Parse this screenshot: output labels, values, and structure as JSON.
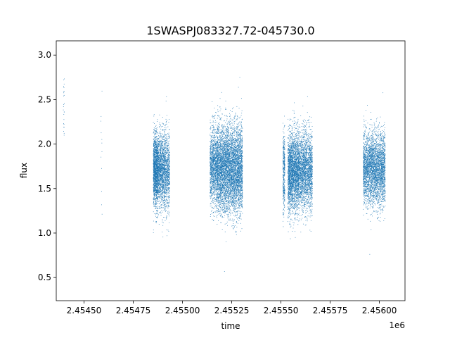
{
  "chart_data": {
    "type": "scatter",
    "title": "1SWASPJ083327.72-045730.0",
    "xlabel": "time",
    "ylabel": "flux",
    "x_offset_label": "1e6",
    "xlim": [
      2454359,
      2456130
    ],
    "ylim": [
      0.24,
      3.16
    ],
    "x_ticks": [
      2454500,
      2454750,
      2455000,
      2455250,
      2455500,
      2455750,
      2456000
    ],
    "x_tick_labels": [
      "2.45450",
      "2.45475",
      "2.45500",
      "2.45525",
      "2.45550",
      "2.45575",
      "2.45600"
    ],
    "y_ticks": [
      0.5,
      1.0,
      1.5,
      2.0,
      2.5,
      3.0
    ],
    "y_tick_labels": [
      "0.5",
      "1.0",
      "1.5",
      "2.0",
      "2.5",
      "3.0"
    ],
    "grid": false,
    "marker_color": "#1f77b4",
    "series": [
      {
        "clusters": [
          {
            "x_range": [
              2454395,
              2454400
            ],
            "y_center": 2.45,
            "y_spread": 0.22,
            "count": 25
          },
          {
            "x_range": [
              2454585,
              2454592
            ],
            "y_center": 2.1,
            "y_spread": 0.5,
            "count": 12
          },
          {
            "x_range": [
              2454852,
              2454875
            ],
            "y_center": 1.7,
            "y_spread": 0.2,
            "count": 1500
          },
          {
            "x_range": [
              2454875,
              2454890
            ],
            "y_center": 1.7,
            "y_spread": 0.2,
            "count": 600
          },
          {
            "x_range": [
              2454890,
              2454935
            ],
            "y_center": 1.7,
            "y_spread": 0.22,
            "count": 1500
          },
          {
            "x_range": [
              2455140,
              2455175
            ],
            "y_center": 1.75,
            "y_spread": 0.22,
            "count": 1200
          },
          {
            "x_range": [
              2455175,
              2455305
            ],
            "y_center": 1.72,
            "y_spread": 0.24,
            "count": 5500
          },
          {
            "x_range": [
              2455510,
              2455520
            ],
            "y_center": 1.7,
            "y_spread": 0.22,
            "count": 400
          },
          {
            "x_range": [
              2455535,
              2455590
            ],
            "y_center": 1.68,
            "y_spread": 0.22,
            "count": 2600
          },
          {
            "x_range": [
              2455590,
              2455660
            ],
            "y_center": 1.7,
            "y_spread": 0.22,
            "count": 2300
          },
          {
            "x_range": [
              2455918,
              2456030
            ],
            "y_center": 1.72,
            "y_spread": 0.2,
            "count": 3600
          }
        ]
      }
    ]
  }
}
